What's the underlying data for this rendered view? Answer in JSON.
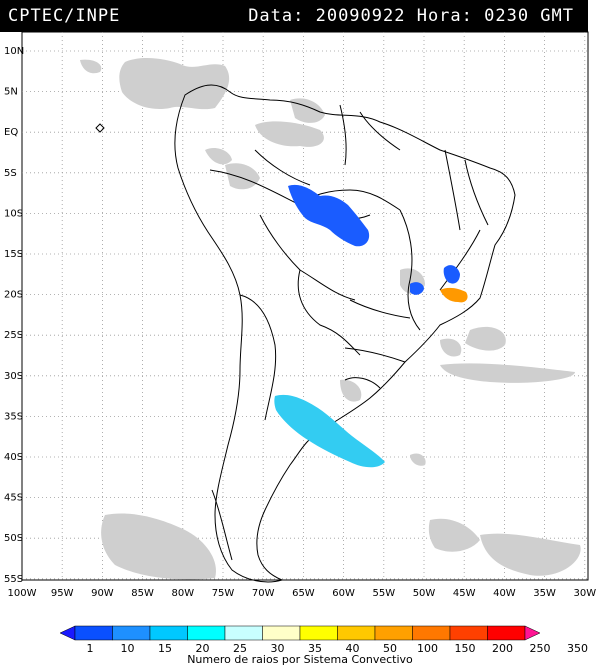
{
  "header": {
    "agency": "CPTEC/INPE",
    "datetime": "Data: 20090922 Hora: 0230 GMT"
  },
  "map": {
    "lat_labels": [
      "10N",
      "5N",
      "EQ",
      "5S",
      "10S",
      "15S",
      "20S",
      "25S",
      "30S",
      "35S",
      "40S",
      "45S",
      "50S",
      "55S"
    ],
    "lon_labels": [
      "100W",
      "95W",
      "90W",
      "85W",
      "80W",
      "75W",
      "70W",
      "65W",
      "60W",
      "55W",
      "50W",
      "45W",
      "40W",
      "35W",
      "30W"
    ],
    "cloud_color": "#cfcfcf",
    "coast_color": "#000000",
    "grid_color": "#9a9a9a"
  },
  "legend": {
    "title": "Numero de raios por Sistema Convectivo",
    "ticks": [
      "1",
      "10",
      "15",
      "20",
      "25",
      "30",
      "35",
      "40",
      "50",
      "100",
      "150",
      "200",
      "250",
      "350"
    ],
    "colors": [
      "#1a1aff",
      "#0a50ff",
      "#1e90ff",
      "#00c8ff",
      "#00ffff",
      "#c8ffff",
      "#ffffc8",
      "#ffff00",
      "#ffc800",
      "#ffa000",
      "#ff7800",
      "#ff4000",
      "#ff0000",
      "#ff1493"
    ]
  },
  "systems": [
    {
      "name": "amazon-system",
      "level": "1",
      "color": "#1a5cff"
    },
    {
      "name": "minas-north-system",
      "level": "1",
      "color": "#1a5cff"
    },
    {
      "name": "minas-west-system",
      "level": "1",
      "color": "#1a5cff"
    },
    {
      "name": "minas-south-system",
      "level": "50",
      "color": "#ff9900"
    },
    {
      "name": "argentina-system",
      "level": "20",
      "color": "#33ccf2"
    }
  ]
}
